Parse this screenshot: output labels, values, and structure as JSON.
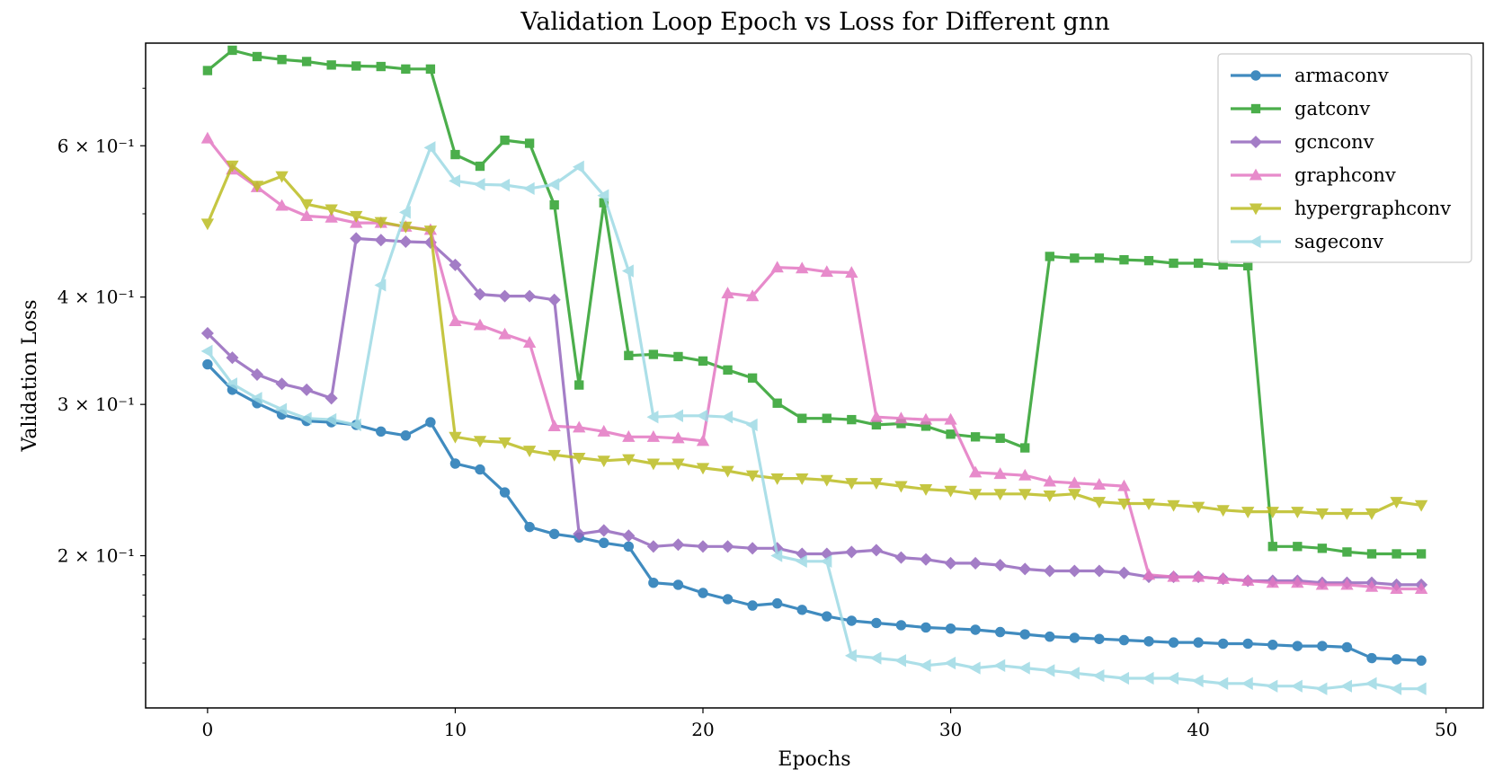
{
  "chart_data": {
    "type": "line",
    "title": "Validation Loop Epoch vs Loss for Different gnn",
    "xlabel": "Epochs",
    "ylabel": "Validation Loss",
    "xlim": [
      -2.5,
      51.5
    ],
    "ylim": [
      0.133,
      0.79
    ],
    "yscale": "log",
    "grid": false,
    "legend_position": "top-right",
    "x_ticks": [
      0,
      10,
      20,
      30,
      40,
      50
    ],
    "x_tick_labels": [
      "0",
      "10",
      "20",
      "30",
      "40",
      "50"
    ],
    "y_ticks": [
      0.2,
      0.3,
      0.4,
      0.6
    ],
    "y_tick_labels": [
      "2 × 10⁻¹",
      "3 × 10⁻¹",
      "4 × 10⁻¹",
      "6 × 10⁻¹"
    ],
    "x": [
      0,
      1,
      2,
      3,
      4,
      5,
      6,
      7,
      8,
      9,
      10,
      11,
      12,
      13,
      14,
      15,
      16,
      17,
      18,
      19,
      20,
      21,
      22,
      23,
      24,
      25,
      26,
      27,
      28,
      29,
      30,
      31,
      32,
      33,
      34,
      35,
      36,
      37,
      38,
      39,
      40,
      41,
      42,
      43,
      44,
      45,
      46,
      47,
      48,
      49
    ],
    "series": [
      {
        "name": "armaconv",
        "color": "#1f77b4",
        "marker": "circle",
        "values": [
          0.334,
          0.312,
          0.301,
          0.292,
          0.287,
          0.286,
          0.284,
          0.279,
          0.276,
          0.286,
          0.256,
          0.252,
          0.237,
          0.216,
          0.212,
          0.21,
          0.207,
          0.205,
          0.186,
          0.185,
          0.181,
          0.178,
          0.175,
          0.176,
          0.173,
          0.17,
          0.168,
          0.167,
          0.166,
          0.165,
          0.1645,
          0.164,
          0.163,
          0.162,
          0.161,
          0.1605,
          0.16,
          0.1595,
          0.159,
          0.1585,
          0.1585,
          0.158,
          0.158,
          0.1575,
          0.157,
          0.157,
          0.1565,
          0.152,
          0.1515,
          0.151
        ]
      },
      {
        "name": "gatconv",
        "color": "#2ca02c",
        "marker": "square",
        "values": [
          0.734,
          0.775,
          0.762,
          0.756,
          0.752,
          0.745,
          0.743,
          0.742,
          0.737,
          0.737,
          0.586,
          0.568,
          0.609,
          0.604,
          0.512,
          0.316,
          0.515,
          0.342,
          0.343,
          0.341,
          0.337,
          0.329,
          0.322,
          0.301,
          0.289,
          0.289,
          0.288,
          0.284,
          0.285,
          0.283,
          0.277,
          0.275,
          0.274,
          0.267,
          0.446,
          0.444,
          0.444,
          0.442,
          0.441,
          0.438,
          0.438,
          0.436,
          0.435,
          0.205,
          0.205,
          0.204,
          0.202,
          0.201,
          0.201,
          0.201
        ]
      },
      {
        "name": "gcnconv",
        "color": "#9467bd",
        "marker": "diamond",
        "values": [
          0.363,
          0.34,
          0.325,
          0.317,
          0.312,
          0.305,
          0.468,
          0.466,
          0.464,
          0.463,
          0.436,
          0.403,
          0.401,
          0.401,
          0.397,
          0.212,
          0.214,
          0.211,
          0.205,
          0.206,
          0.205,
          0.205,
          0.204,
          0.204,
          0.201,
          0.201,
          0.202,
          0.203,
          0.199,
          0.198,
          0.196,
          0.196,
          0.195,
          0.193,
          0.192,
          0.192,
          0.192,
          0.191,
          0.189,
          0.189,
          0.189,
          0.188,
          0.187,
          0.187,
          0.187,
          0.186,
          0.186,
          0.186,
          0.185,
          0.185
        ]
      },
      {
        "name": "graphconv",
        "color": "#e377c2",
        "marker": "triangle-up",
        "values": [
          0.612,
          0.563,
          0.537,
          0.511,
          0.497,
          0.495,
          0.488,
          0.488,
          0.483,
          0.479,
          0.375,
          0.371,
          0.362,
          0.354,
          0.283,
          0.282,
          0.279,
          0.275,
          0.275,
          0.274,
          0.272,
          0.404,
          0.401,
          0.433,
          0.432,
          0.428,
          0.427,
          0.29,
          0.289,
          0.288,
          0.288,
          0.25,
          0.249,
          0.248,
          0.244,
          0.243,
          0.242,
          0.241,
          0.19,
          0.189,
          0.189,
          0.188,
          0.187,
          0.186,
          0.186,
          0.185,
          0.185,
          0.184,
          0.183,
          0.183
        ]
      },
      {
        "name": "hypergraphconv",
        "color": "#bcbd22",
        "marker": "triangle-down",
        "values": [
          0.487,
          0.569,
          0.539,
          0.553,
          0.513,
          0.506,
          0.497,
          0.489,
          0.483,
          0.478,
          0.275,
          0.272,
          0.271,
          0.265,
          0.262,
          0.26,
          0.258,
          0.259,
          0.256,
          0.256,
          0.253,
          0.251,
          0.248,
          0.246,
          0.246,
          0.245,
          0.243,
          0.243,
          0.241,
          0.239,
          0.238,
          0.236,
          0.236,
          0.236,
          0.235,
          0.236,
          0.231,
          0.23,
          0.23,
          0.229,
          0.228,
          0.226,
          0.225,
          0.225,
          0.225,
          0.224,
          0.224,
          0.224,
          0.231,
          0.229
        ]
      },
      {
        "name": "sageconv",
        "color": "#9edae5",
        "marker": "triangle-left",
        "values": [
          0.346,
          0.317,
          0.305,
          0.296,
          0.289,
          0.288,
          0.284,
          0.413,
          0.502,
          0.597,
          0.546,
          0.541,
          0.54,
          0.535,
          0.541,
          0.567,
          0.525,
          0.429,
          0.29,
          0.291,
          0.291,
          0.29,
          0.284,
          0.2,
          0.197,
          0.197,
          0.153,
          0.152,
          0.151,
          0.149,
          0.15,
          0.148,
          0.149,
          0.148,
          0.147,
          0.146,
          0.145,
          0.144,
          0.144,
          0.144,
          0.143,
          0.142,
          0.142,
          0.141,
          0.141,
          0.14,
          0.141,
          0.142,
          0.14,
          0.14
        ]
      }
    ]
  }
}
